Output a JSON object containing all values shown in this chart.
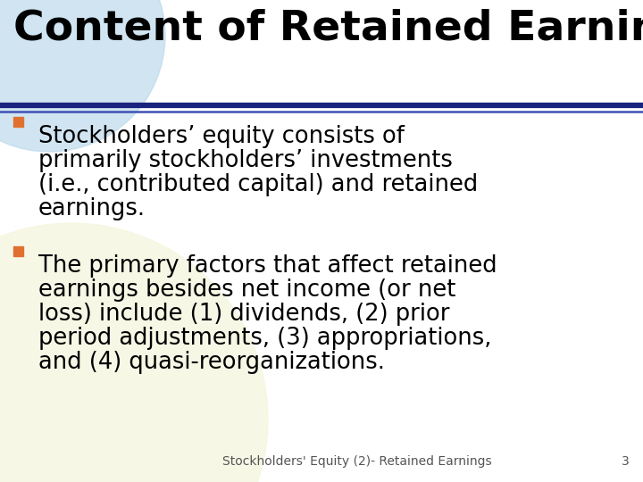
{
  "title": "Content of Retained Earnings",
  "title_fontsize": 34,
  "title_color": "#000000",
  "bg_color": "#FFFFFF",
  "circle_color_top": "#B8D8EA",
  "circle_color_bottom": "#F5F5DC",
  "line_color_dark": "#1A237E",
  "line_color_light": "#3F51B5",
  "bullet_color": "#E07030",
  "bullet_fontsize": 18.5,
  "footer_text": "Stockholders' Equity (2)- Retained Earnings",
  "footer_num": "3",
  "footer_fontsize": 10,
  "b1_lines": [
    "Stockholders’ equity consists of",
    "primarily stockholders’ investments",
    "(i.e., contributed capital) and retained",
    "earnings."
  ],
  "b2_lines": [
    "The primary factors that affect retained",
    "earnings besides net income (or net",
    "loss) include (1) dividends, (2) prior",
    "period adjustments, (3) appropriations,",
    "and (4) quasi-reorganizations."
  ]
}
